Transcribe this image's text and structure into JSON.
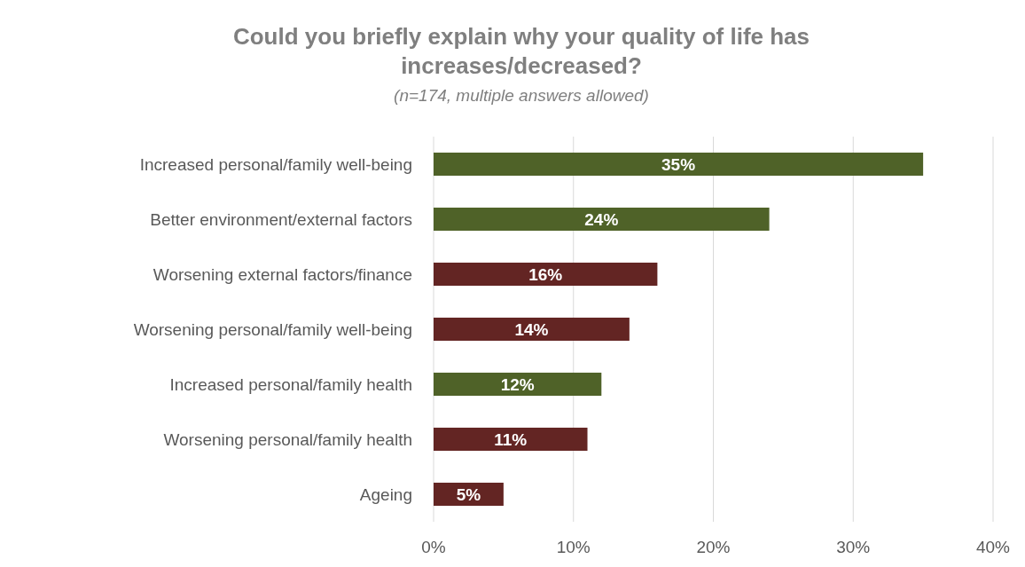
{
  "chart_data": {
    "type": "bar",
    "orientation": "horizontal",
    "title": "Could you briefly explain why your quality of life has increases/decreased?",
    "subtitle": "(n=174, multiple answers allowed)",
    "categories": [
      "Increased personal/family well-being",
      "Better environment/external factors",
      "Worsening external factors/finance",
      "Worsening personal/family well-being",
      "Increased personal/family health",
      "Worsening personal/family health",
      "Ageing"
    ],
    "values": [
      35,
      24,
      16,
      14,
      12,
      11,
      5
    ],
    "colors": [
      "#4f6228",
      "#4f6228",
      "#632523",
      "#632523",
      "#4f6228",
      "#632523",
      "#632523"
    ],
    "value_labels": [
      "35%",
      "24%",
      "16%",
      "14%",
      "12%",
      "11%",
      "5%"
    ],
    "xlim": [
      0,
      40
    ],
    "xticks": [
      {
        "value": 0,
        "label": "0%"
      },
      {
        "value": 10,
        "label": "10%"
      },
      {
        "value": 20,
        "label": "20%"
      },
      {
        "value": 30,
        "label": "30%"
      },
      {
        "value": 40,
        "label": "40%"
      }
    ],
    "grid": "x"
  }
}
